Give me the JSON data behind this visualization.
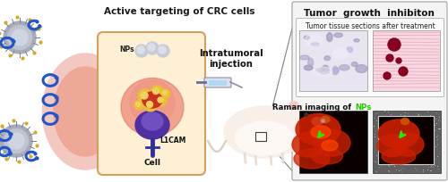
{
  "title_left": "Active targeting of CRC cells",
  "title_right": "Tumor  growth  inhibiton",
  "label_intratumoral": "Intratumoral\ninjection",
  "label_NPs": "NPs",
  "label_L1CAM": "L1CAM",
  "label_Cell": "Cell",
  "label_tissue": "Tumor tissue sections after treatment",
  "label_raman": "Raman imaging of ",
  "label_NPs_green": "NPs",
  "bg_color": "#ffffff",
  "figsize": [
    5.0,
    2.04
  ],
  "dpi": 100
}
